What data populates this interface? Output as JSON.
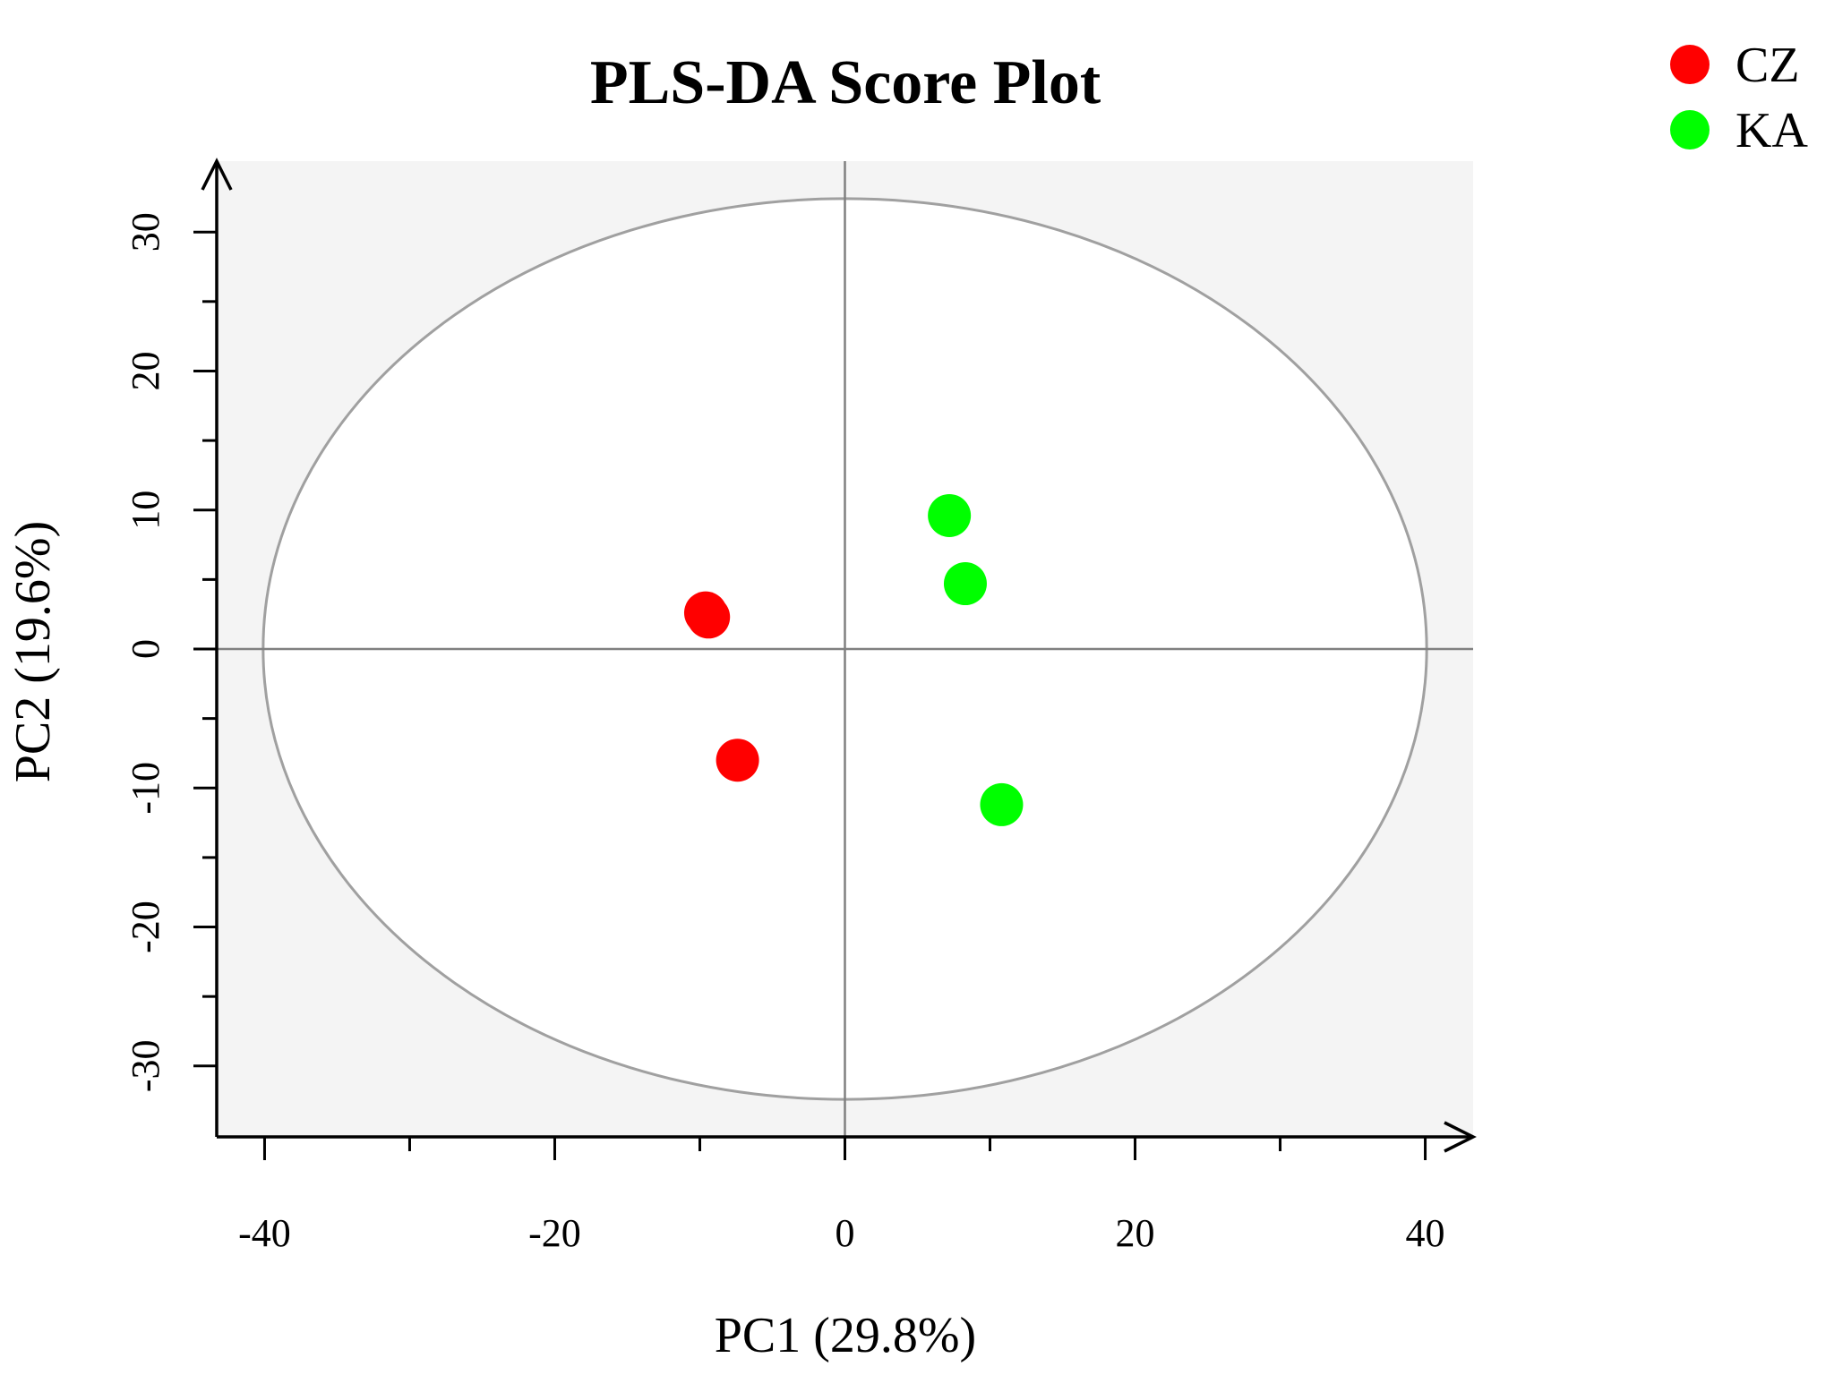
{
  "chart_data": {
    "type": "scatter",
    "title": "PLS-DA Score Plot",
    "xlabel": "PC1 (29.8%)",
    "ylabel": "PC2 (19.6%)",
    "xlim": [
      -43.3,
      43.3
    ],
    "ylim": [
      -35.1,
      35.1
    ],
    "x_ticks": [
      -40,
      -20,
      0,
      20,
      40
    ],
    "x_tick_labels": [
      "-40",
      "-20",
      "0",
      "20",
      "40"
    ],
    "y_ticks": [
      -30,
      -20,
      -10,
      0,
      10,
      20,
      30
    ],
    "y_tick_labels": [
      "-30",
      "-20",
      "-10",
      "0",
      "10",
      "20",
      "30"
    ],
    "confidence_ellipse": {
      "center": [
        0,
        0
      ],
      "x_radius": 40.1,
      "y_radius": 32.4
    },
    "legend_position": "top-right",
    "grid": false,
    "series": [
      {
        "name": "CZ",
        "color": "#ff0000",
        "points": [
          {
            "x": -9.6,
            "y": 2.6
          },
          {
            "x": -9.4,
            "y": 2.3
          },
          {
            "x": -7.4,
            "y": -8.0
          }
        ]
      },
      {
        "name": "KA",
        "color": "#00ff00",
        "points": [
          {
            "x": 7.2,
            "y": 9.6
          },
          {
            "x": 8.3,
            "y": 4.7
          },
          {
            "x": 10.8,
            "y": -11.2
          }
        ]
      }
    ],
    "colors": {
      "panel_background": "#f4f4f4",
      "ellipse": "#a0a0a0",
      "zero_lines": "#808080",
      "axes": "#000000"
    }
  }
}
